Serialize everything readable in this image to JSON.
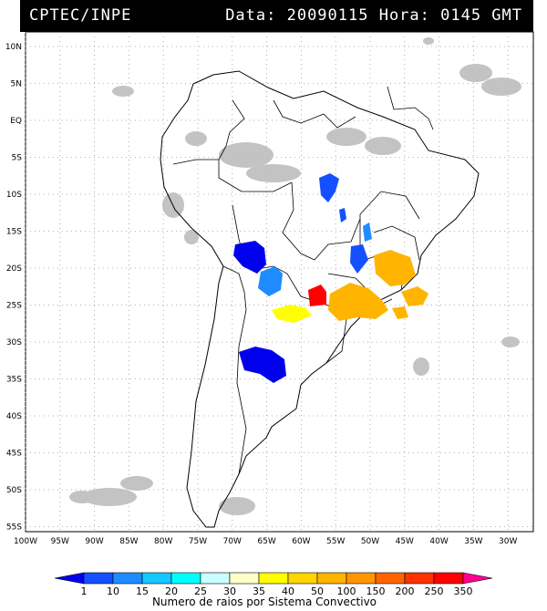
{
  "header": {
    "org": "CPTEC/INPE",
    "stamp": "Data: 20090115 Hora: 0145 GMT"
  },
  "lat_labels": [
    "10N",
    "5N",
    "EQ",
    "5S",
    "10S",
    "15S",
    "20S",
    "25S",
    "30S",
    "35S",
    "40S",
    "45S",
    "50S",
    "55S"
  ],
  "lon_labels": [
    "100W",
    "95W",
    "90W",
    "85W",
    "80W",
    "75W",
    "70W",
    "65W",
    "60W",
    "55W",
    "50W",
    "45W",
    "40W",
    "35W",
    "30W"
  ],
  "colorbar": {
    "ticks": [
      "1",
      "10",
      "15",
      "20",
      "25",
      "30",
      "35",
      "40",
      "50",
      "100",
      "150",
      "200",
      "250",
      "350"
    ],
    "title": "Numero de raios por Sistema Convectivo",
    "colors": [
      "#0000ee",
      "#1450ff",
      "#1e8cff",
      "#14c8ff",
      "#00ffff",
      "#c8ffff",
      "#ffffc8",
      "#ffff00",
      "#ffd400",
      "#ffb400",
      "#ff9600",
      "#ff6400",
      "#ff3200",
      "#ff0000",
      "#ff0090"
    ]
  }
}
